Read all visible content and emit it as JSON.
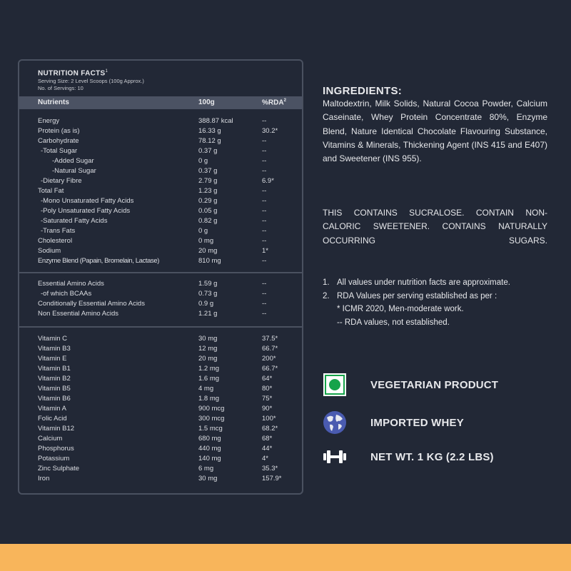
{
  "nutrition": {
    "title": "NUTRITION FACTS",
    "title_sup": "1",
    "serving_size": "Serving Size: 2 Level Scoops (100g Approx.)",
    "servings": "No. of Servings: 10",
    "headers": {
      "nutrient": "Nutrients",
      "amount": "100g",
      "rda": "%RDA",
      "rda_sup": "2"
    },
    "sections": [
      [
        {
          "n": "Energy",
          "v": "388.87 kcal",
          "r": "--",
          "i": 0
        },
        {
          "n": "Protein (as is)",
          "v": "16.33 g",
          "r": "30.2*",
          "i": 0
        },
        {
          "n": "Carbohydrate",
          "v": "78.12 g",
          "r": "--",
          "i": 0
        },
        {
          "n": "-Total Sugar",
          "v": "0.37 g",
          "r": "--",
          "i": 1
        },
        {
          "n": "-Added Sugar",
          "v": "0 g",
          "r": "--",
          "i": 2
        },
        {
          "n": "-Natural Sugar",
          "v": "0.37 g",
          "r": "--",
          "i": 2
        },
        {
          "n": "-Dietary Fibre",
          "v": "2.79 g",
          "r": "6.9*",
          "i": 1
        },
        {
          "n": "Total Fat",
          "v": "1.23 g",
          "r": "--",
          "i": 0
        },
        {
          "n": "-Mono Unsaturated Fatty Acids",
          "v": "0.29 g",
          "r": "--",
          "i": 1
        },
        {
          "n": "-Poly Unsaturated Fatty Acids",
          "v": "0.05 g",
          "r": "--",
          "i": 1
        },
        {
          "n": "-Saturated Fatty Acids",
          "v": "0.82 g",
          "r": "--",
          "i": 1
        },
        {
          "n": "-Trans Fats",
          "v": "0 g",
          "r": "--",
          "i": 1
        },
        {
          "n": "Cholesterol",
          "v": "0 mg",
          "r": "--",
          "i": 0
        },
        {
          "n": "Sodium",
          "v": "20 mg",
          "r": "1*",
          "i": 0
        },
        {
          "n": "Enzyme Blend (Papain, Bromelain, Lactase)",
          "v": "810 mg",
          "r": "--",
          "i": 0
        }
      ],
      [
        {
          "n": "Essential Amino Acids",
          "v": "1.59 g",
          "r": "--",
          "i": 0
        },
        {
          "n": "-of which BCAAs",
          "v": "0.73 g",
          "r": "--",
          "i": 1
        },
        {
          "n": "Conditionally Essential Amino Acids",
          "v": "0.9 g",
          "r": "--",
          "i": 0
        },
        {
          "n": "Non Essential Amino Acids",
          "v": "1.21 g",
          "r": "--",
          "i": 0
        }
      ],
      [
        {
          "n": "Vitamin C",
          "v": "30 mg",
          "r": "37.5*",
          "i": 0
        },
        {
          "n": "Vitamin B3",
          "v": "12 mg",
          "r": "66.7*",
          "i": 0
        },
        {
          "n": "Vitamin E",
          "v": "20 mg",
          "r": "200*",
          "i": 0
        },
        {
          "n": "Vitamin B1",
          "v": "1.2 mg",
          "r": "66.7*",
          "i": 0
        },
        {
          "n": "Vitamin B2",
          "v": "1.6 mg",
          "r": "64*",
          "i": 0
        },
        {
          "n": "Vitamin B5",
          "v": "4 mg",
          "r": "80*",
          "i": 0
        },
        {
          "n": "Vitamin B6",
          "v": "1.8 mg",
          "r": "75*",
          "i": 0
        },
        {
          "n": "Vitamin A",
          "v": "900 mcg",
          "r": "90*",
          "i": 0
        },
        {
          "n": "Folic Acid",
          "v": "300 mcg",
          "r": "100*",
          "i": 0
        },
        {
          "n": "Vitamin B12",
          "v": "1.5 mcg",
          "r": "68.2*",
          "i": 0
        },
        {
          "n": "Calcium",
          "v": "680 mg",
          "r": "68*",
          "i": 0
        },
        {
          "n": "Phosphorus",
          "v": "440 mg",
          "r": "44*",
          "i": 0
        },
        {
          "n": "Potassium",
          "v": "140 mg",
          "r": "4*",
          "i": 0
        },
        {
          "n": "Zinc Sulphate",
          "v": "6 mg",
          "r": "35.3*",
          "i": 0
        },
        {
          "n": "Iron",
          "v": "30 mg",
          "r": "157.9*",
          "i": 0
        }
      ]
    ]
  },
  "ingredients": {
    "title": "INGREDIENTS:",
    "text": "Maltodextrin, Milk Solids, Natural Cocoa Powder, Calcium Caseinate, Whey Protein Concentrate 80%, Enzyme Blend, Nature Identical Chocolate Flavouring Substance, Vitamins & Minerals, Thickening Agent (INS 415 and E407) and Sweetener (INS 955)."
  },
  "warning": "THIS CONTAINS SUCRALOSE. CONTAIN NON-CALORIC SWEETENER. CONTAINS NATURALLY OCCURRING SUGARS.",
  "notes": [
    {
      "num": "1.",
      "text": "All values under nutrition facts  are approximate."
    },
    {
      "num": "2.",
      "text": "RDA Values per serving established as per :"
    }
  ],
  "subnotes": [
    "* ICMR 2020, Men-moderate work.",
    "-- RDA values, not established."
  ],
  "badges": [
    {
      "icon": "vegetarian-icon",
      "label": "VEGETARIAN PRODUCT"
    },
    {
      "icon": "globe-icon",
      "label": "IMPORTED WHEY"
    },
    {
      "icon": "dumbbell-icon",
      "label": "NET WT.  1 KG (2.2 LBS)"
    }
  ],
  "colors": {
    "background": "#222836",
    "stripe": "#f8b55b",
    "veg_green": "#16a34a",
    "globe_blue": "#4a5bb0"
  }
}
